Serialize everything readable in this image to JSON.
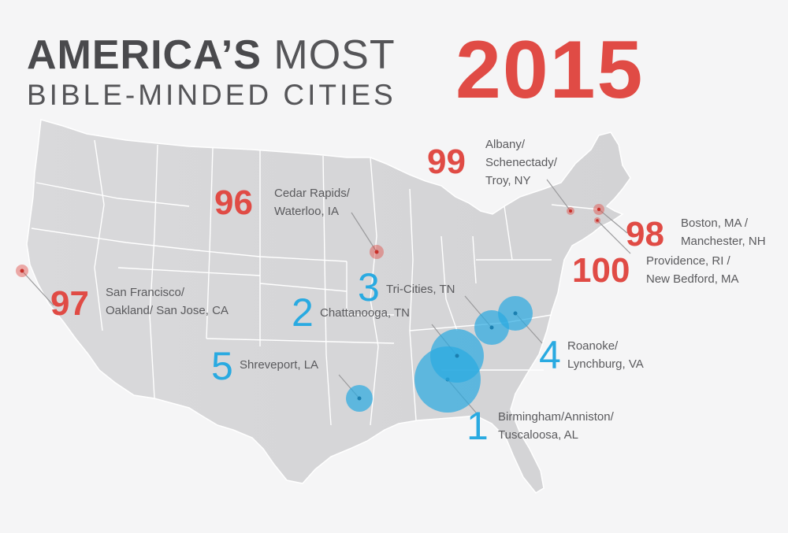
{
  "title": {
    "bold": "AMERICA’S",
    "light": "MOST",
    "subtitle": "BIBLE-MINDED CITIES",
    "year": "2015"
  },
  "colors": {
    "least": "#e04b45",
    "most": "#29aae1",
    "map": "#d6d6d8",
    "background": "#f5f5f6"
  },
  "most_bible_minded": [
    {
      "rank": "1",
      "line1": "Birmingham/Anniston/",
      "line2": "Tuscaloosa, AL"
    },
    {
      "rank": "2",
      "line1": "Chattanooga, TN"
    },
    {
      "rank": "3",
      "line1": "Tri-Cities, TN"
    },
    {
      "rank": "4",
      "line1": "Roanoke/",
      "line2": "Lynchburg, VA"
    },
    {
      "rank": "5",
      "line1": "Shreveport, LA"
    }
  ],
  "least_bible_minded": [
    {
      "rank": "96",
      "line1": "Cedar Rapids/",
      "line2": "Waterloo, IA"
    },
    {
      "rank": "97",
      "line1": "San Francisco/",
      "line2": "Oakland/ San Jose, CA"
    },
    {
      "rank": "98",
      "line1": "Boston, MA /",
      "line2": "Manchester, NH"
    },
    {
      "rank": "99",
      "line1": "Albany/",
      "line2": "Schenectady/",
      "line3": "Troy, NY"
    },
    {
      "rank": "100",
      "line1": "Providence, RI /",
      "line2": "New Bedford, MA"
    }
  ]
}
